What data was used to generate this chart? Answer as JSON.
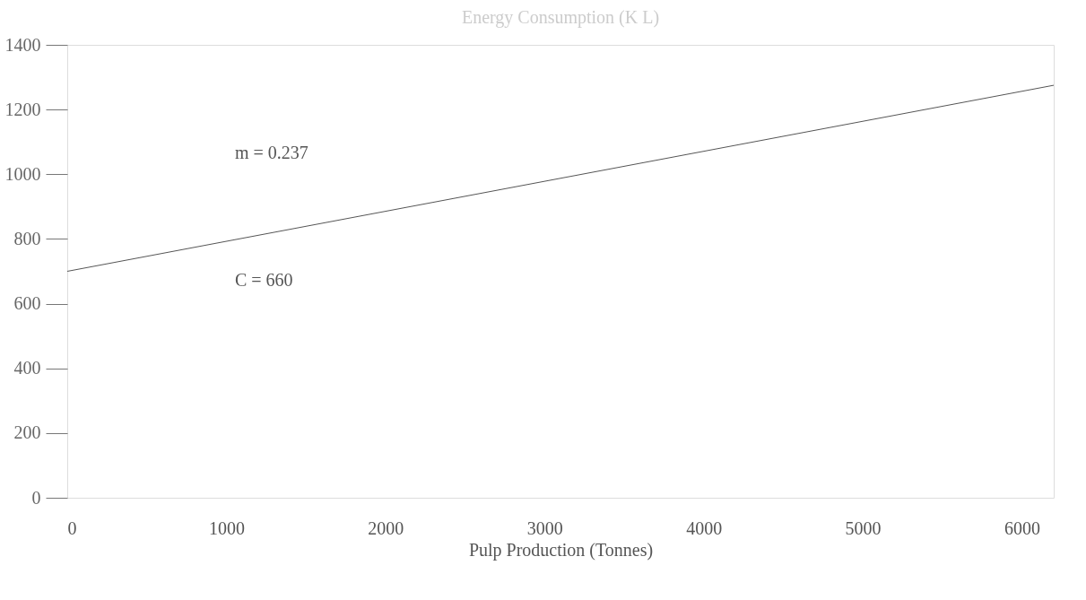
{
  "chart_data": {
    "type": "line",
    "title": "Energy Consumption (K L)",
    "xlabel": "Pulp Production (Tonnes)",
    "x": [
      0,
      6200
    ],
    "series": [
      {
        "color": "#555555",
        "values": [
          700,
          1275
        ]
      }
    ],
    "xlim": [
      0,
      6200
    ],
    "xticks": [
      0,
      1000,
      2000,
      3000,
      4000,
      5000,
      6000
    ],
    "ylim": [
      0,
      1400
    ],
    "yticks": [
      0,
      200,
      400,
      600,
      800,
      1000,
      1200,
      1400
    ],
    "annotations": [
      "m = 0.237",
      "C = 660"
    ],
    "grid": false,
    "marker": "none",
    "line_style": "solid"
  }
}
